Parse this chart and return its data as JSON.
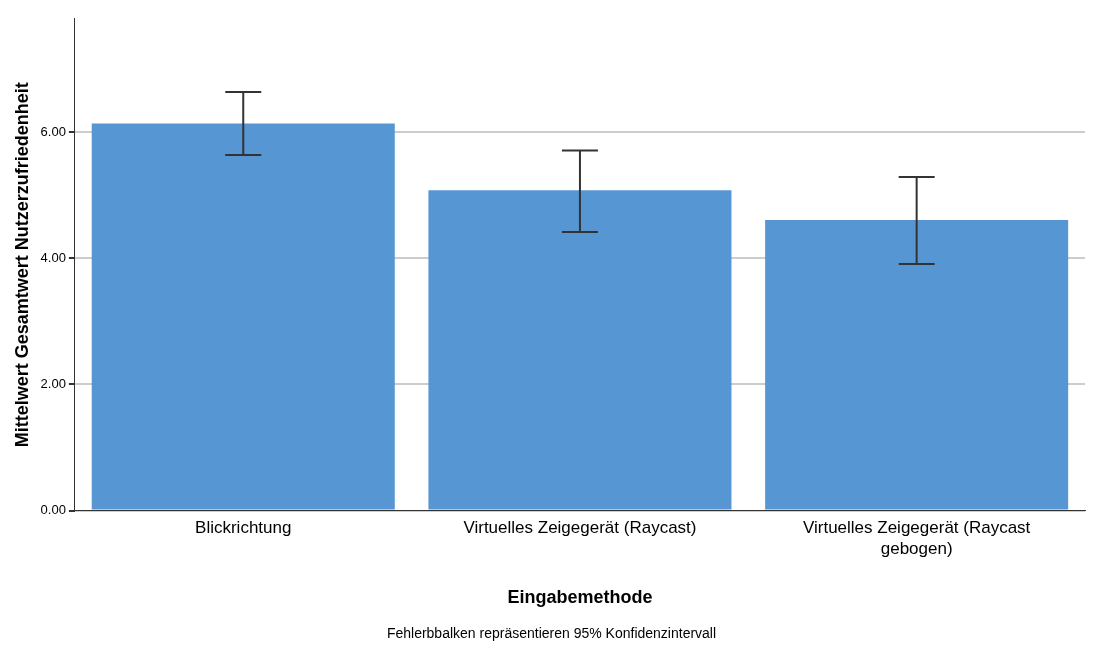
{
  "chart_data": {
    "type": "bar",
    "ylabel": "Mittelwert Gesamtwert Nutzerzufriedenheit",
    "xlabel": "Eingabemethode",
    "categories": [
      "Blickrichtung",
      "Virtuelles Zeigegerät (Raycast)",
      "Virtuelles Zeigegerät (Raycast gebogen)"
    ],
    "values": [
      6.14,
      5.08,
      4.61
    ],
    "errors": [
      [
        5.64,
        6.64
      ],
      [
        4.42,
        5.71
      ],
      [
        3.91,
        5.29
      ]
    ],
    "color": "#5596d3",
    "ylim": [
      0,
      7.8
    ],
    "yticks": [
      {
        "value": 0,
        "label": "0.00"
      },
      {
        "value": 2,
        "label": "2.00"
      },
      {
        "value": 4,
        "label": "4.00"
      },
      {
        "value": 6,
        "label": "6.00"
      }
    ],
    "grid": "y",
    "annotations": [
      "Fehlerbbalken repräsentieren 95% Konfidenzintervall"
    ]
  }
}
